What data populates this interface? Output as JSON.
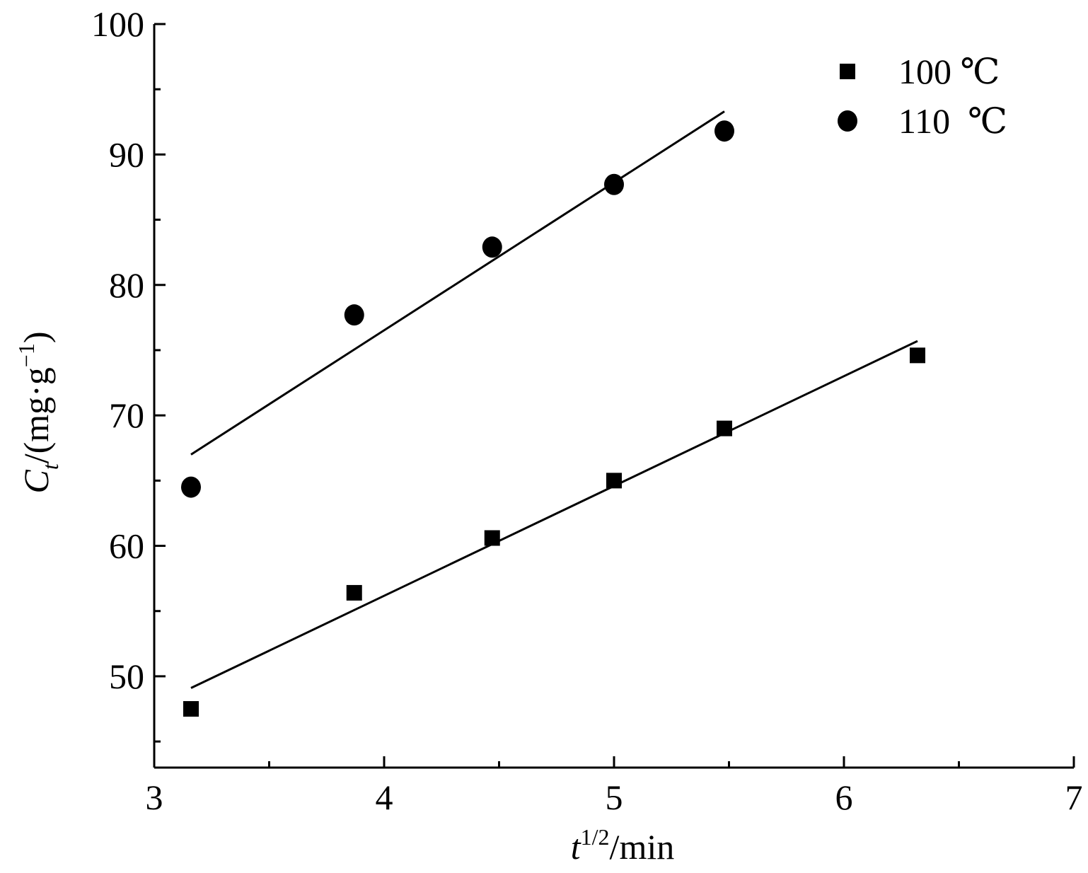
{
  "chart_data": {
    "type": "scatter",
    "xlabel": {
      "main": "t",
      "sup": "1/2",
      "rest": "/min"
    },
    "ylabel": {
      "main": "C",
      "sub": "t",
      "rest": "/(mg·g",
      "sup": "−1",
      "close": ")"
    },
    "xlim": [
      3,
      7
    ],
    "ylim": [
      43,
      100
    ],
    "x_ticks": [
      3,
      4,
      5,
      6,
      7
    ],
    "x_minor_ticks": [
      3.5,
      4.5,
      5.5,
      6.5
    ],
    "y_ticks": [
      50,
      60,
      70,
      80,
      90,
      100
    ],
    "y_minor_ticks": [
      45,
      55,
      65,
      75,
      85,
      95
    ],
    "grid": false,
    "legend_position": "top-right",
    "series": [
      {
        "name": "100 ℃",
        "marker": "square",
        "color": "#000000",
        "x": [
          3.16,
          3.87,
          4.47,
          5.0,
          5.48,
          6.32
        ],
        "y": [
          47.5,
          56.4,
          60.6,
          65.0,
          69.0,
          74.6
        ],
        "fit": {
          "x": [
            3.16,
            6.32
          ],
          "y": [
            49.1,
            75.7
          ]
        }
      },
      {
        "name": "110  ℃",
        "marker": "circle",
        "color": "#000000",
        "x": [
          3.16,
          3.87,
          4.47,
          5.0,
          5.48
        ],
        "y": [
          64.5,
          77.7,
          82.9,
          87.7,
          91.8
        ],
        "fit": {
          "x": [
            3.16,
            5.48
          ],
          "y": [
            67.0,
            93.3
          ]
        }
      }
    ]
  }
}
